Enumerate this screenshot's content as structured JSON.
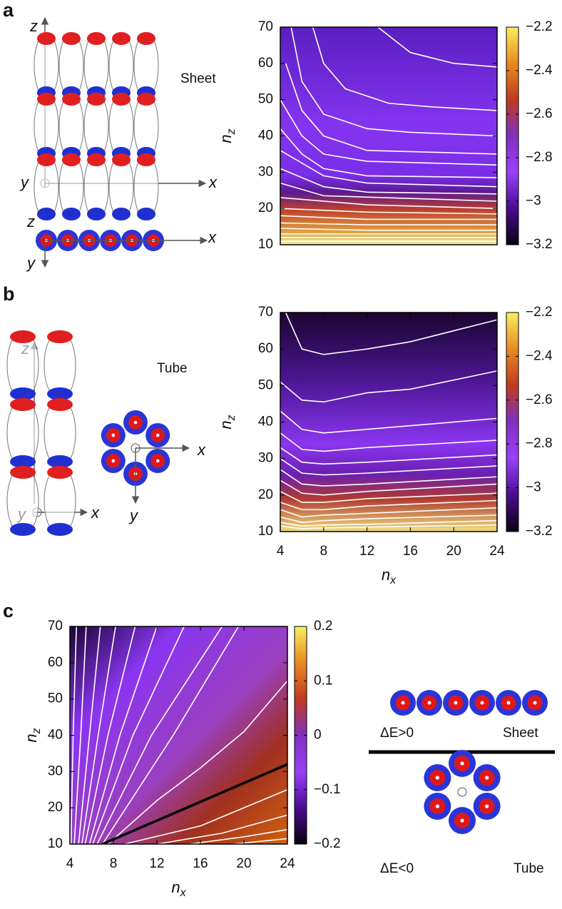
{
  "panel_labels": [
    "a",
    "b",
    "c"
  ],
  "illustrations": {
    "sheet": {
      "title": "Sheet",
      "side_axes": [
        "z",
        "y",
        "x"
      ],
      "top_axes": [
        "z",
        "x",
        "y"
      ]
    },
    "tube": {
      "title": "Tube",
      "side_axes": [
        "z",
        "y",
        "x"
      ],
      "top_axes": [
        "x",
        "y"
      ]
    },
    "comparison": {
      "sheet": {
        "condition": "ΔE>0",
        "label": "Sheet"
      },
      "tube": {
        "condition": "ΔE<0",
        "label": "Tube"
      }
    }
  },
  "chart_data": [
    {
      "type": "contour",
      "xlim": [
        4,
        24
      ],
      "ylim": [
        10,
        70
      ],
      "yticks": [
        10,
        20,
        30,
        40,
        50,
        60,
        70
      ],
      "ylabel": [
        "n",
        "z"
      ],
      "colorbar": {
        "lim": [
          -3.2,
          -2.2
        ],
        "ticks": [
          {
            "value": -3.2,
            "label": "−3.2"
          },
          {
            "value": -3,
            "label": "−3"
          },
          {
            "value": -2.8,
            "label": "−2.8"
          },
          {
            "value": -2.6,
            "label": "−2.6"
          },
          {
            "value": -2.4,
            "label": "−2.4"
          },
          {
            "value": -2.2,
            "label": "−2.2"
          }
        ],
        "colors": [
          "#0a0010",
          "#4a0c90",
          "#9a40f8",
          "#8030c0",
          "#c03a20",
          "#e88a20",
          "#f8f060"
        ]
      },
      "contour_color": "#ffffff",
      "contours": [
        {
          "x": [
            13,
            16,
            20,
            24
          ],
          "y": [
            70,
            63,
            60,
            59
          ]
        },
        {
          "x": [
            7,
            8,
            10,
            14,
            18,
            24
          ],
          "y": [
            70,
            60,
            53,
            49,
            48,
            47
          ]
        },
        {
          "x": [
            5,
            6,
            8,
            12,
            16,
            24
          ],
          "y": [
            70,
            55,
            46,
            42,
            41,
            40
          ]
        },
        {
          "x": [
            4.5,
            6,
            8,
            12,
            24
          ],
          "y": [
            60,
            47,
            40,
            36,
            35
          ]
        },
        {
          "x": [
            4,
            6,
            8,
            12,
            24
          ],
          "y": [
            50,
            40,
            35,
            33,
            32
          ]
        },
        {
          "x": [
            4,
            6,
            8,
            12,
            24
          ],
          "y": [
            42,
            35,
            31,
            29,
            28.5
          ]
        },
        {
          "x": [
            4,
            8,
            12,
            24
          ],
          "y": [
            36,
            29,
            27,
            26
          ]
        },
        {
          "x": [
            4,
            8,
            12,
            24
          ],
          "y": [
            31,
            26,
            24.5,
            24
          ]
        },
        {
          "x": [
            4,
            8,
            24
          ],
          "y": [
            27,
            23.5,
            22
          ]
        },
        {
          "x": [
            4,
            12,
            24
          ],
          "y": [
            23,
            21,
            20
          ]
        },
        {
          "x": [
            4,
            12,
            24
          ],
          "y": [
            20,
            19,
            18.5
          ]
        },
        {
          "x": [
            4,
            12,
            24
          ],
          "y": [
            18,
            17,
            17
          ]
        },
        {
          "x": [
            4,
            12,
            24
          ],
          "y": [
            16,
            15.5,
            15.5
          ]
        },
        {
          "x": [
            4,
            12,
            24
          ],
          "y": [
            14.5,
            14,
            14
          ]
        },
        {
          "x": [
            4,
            12,
            24
          ],
          "y": [
            13,
            13,
            13
          ]
        },
        {
          "x": [
            4,
            12,
            24
          ],
          "y": [
            12,
            12,
            12
          ]
        },
        {
          "x": [
            4,
            12,
            24
          ],
          "y": [
            11,
            11,
            11
          ]
        }
      ]
    },
    {
      "type": "contour",
      "xlim": [
        4,
        24
      ],
      "ylim": [
        10,
        70
      ],
      "xticks": [
        4,
        8,
        12,
        16,
        20,
        24
      ],
      "yticks": [
        10,
        20,
        30,
        40,
        50,
        60,
        70
      ],
      "xlabel": [
        "n",
        "x"
      ],
      "ylabel": [
        "n",
        "z"
      ],
      "colorbar": {
        "lim": [
          -3.2,
          -2.2
        ],
        "ticks": [
          {
            "value": -3.2,
            "label": "−3.2"
          },
          {
            "value": -3,
            "label": "−3"
          },
          {
            "value": -2.8,
            "label": "−2.8"
          },
          {
            "value": -2.6,
            "label": "−2.6"
          },
          {
            "value": -2.4,
            "label": "−2.4"
          },
          {
            "value": -2.2,
            "label": "−2.2"
          }
        ],
        "colors": [
          "#0a0010",
          "#4a0c90",
          "#9a40f8",
          "#8030c0",
          "#c03a20",
          "#e88a20",
          "#f8f060"
        ]
      },
      "contour_color": "#ffffff",
      "contours": [
        {
          "x": [
            4.5,
            6,
            8,
            12,
            16,
            24
          ],
          "y": [
            70,
            60,
            58.5,
            60,
            62,
            68
          ]
        },
        {
          "x": [
            4,
            6,
            8,
            12,
            16,
            24
          ],
          "y": [
            51,
            46,
            45.5,
            48,
            49,
            54
          ]
        },
        {
          "x": [
            4,
            6,
            8,
            12,
            24
          ],
          "y": [
            43,
            38,
            37,
            38,
            41
          ]
        },
        {
          "x": [
            4,
            6,
            8,
            12,
            24
          ],
          "y": [
            37,
            32.5,
            32,
            33,
            35
          ]
        },
        {
          "x": [
            4,
            6,
            8,
            12,
            24
          ],
          "y": [
            33,
            29,
            28.5,
            29,
            31
          ]
        },
        {
          "x": [
            4,
            6,
            8,
            12,
            24
          ],
          "y": [
            30,
            26,
            25.5,
            26,
            28
          ]
        },
        {
          "x": [
            4,
            6,
            8,
            12,
            24
          ],
          "y": [
            27,
            23,
            22.5,
            23,
            25
          ]
        },
        {
          "x": [
            4,
            6,
            8,
            12,
            24
          ],
          "y": [
            24,
            20.5,
            20,
            21,
            23
          ]
        },
        {
          "x": [
            4,
            6,
            8,
            12,
            24
          ],
          "y": [
            21,
            18,
            18,
            19,
            20.5
          ]
        },
        {
          "x": [
            4,
            6,
            8,
            12,
            24
          ],
          "y": [
            18,
            16,
            16,
            17,
            18.5
          ]
        },
        {
          "x": [
            4,
            6,
            8,
            12,
            24
          ],
          "y": [
            16,
            14,
            14.5,
            15,
            16.5
          ]
        },
        {
          "x": [
            4,
            6,
            8,
            12,
            24
          ],
          "y": [
            14,
            12.5,
            13,
            13.5,
            14.5
          ]
        },
        {
          "x": [
            4,
            6,
            8,
            12,
            24
          ],
          "y": [
            12.5,
            11.5,
            11.8,
            12,
            13
          ]
        },
        {
          "x": [
            4,
            6,
            8,
            12,
            24
          ],
          "y": [
            11.5,
            10.8,
            11,
            11.2,
            11.8
          ]
        }
      ]
    },
    {
      "type": "contour",
      "xlim": [
        4,
        24
      ],
      "ylim": [
        10,
        70
      ],
      "xticks": [
        4,
        8,
        12,
        16,
        20,
        24
      ],
      "yticks": [
        10,
        20,
        30,
        40,
        50,
        60,
        70
      ],
      "xlabel": [
        "n",
        "x"
      ],
      "ylabel": [
        "n",
        "z"
      ],
      "colorbar": {
        "lim": [
          -0.2,
          0.2
        ],
        "ticks": [
          {
            "value": -0.2,
            "label": "−0.2"
          },
          {
            "value": -0.1,
            "label": "−0.1"
          },
          0,
          0.1,
          0.2
        ],
        "colors": [
          "#0a0010",
          "#4a0c90",
          "#9a40f8",
          "#8030c0",
          "#c03a20",
          "#e88a20",
          "#f8f060"
        ]
      },
      "contour_color": "#ffffff",
      "contours": [
        {
          "x": [
            4.1,
            4.3,
            4.6
          ],
          "y": [
            10,
            40,
            70
          ]
        },
        {
          "x": [
            4.4,
            5,
            5.5
          ],
          "y": [
            10,
            40,
            70
          ]
        },
        {
          "x": [
            4.8,
            5.8,
            6.8
          ],
          "y": [
            10,
            40,
            70
          ]
        },
        {
          "x": [
            5.1,
            6.6,
            8.2
          ],
          "y": [
            10,
            40,
            70
          ]
        },
        {
          "x": [
            5.4,
            7.5,
            10
          ],
          "y": [
            10,
            40,
            70
          ]
        },
        {
          "x": [
            5.8,
            8.6,
            12
          ],
          "y": [
            10,
            40,
            70
          ]
        },
        {
          "x": [
            6.1,
            9.8,
            14.5
          ],
          "y": [
            10,
            40,
            70
          ]
        },
        {
          "x": [
            6.5,
            11.5,
            18
          ],
          "y": [
            10,
            40,
            70
          ]
        },
        {
          "x": [
            7,
            13.5,
            19.5
          ],
          "y": [
            10,
            40,
            70
          ]
        },
        {
          "x": [
            7.5,
            12,
            16,
            20,
            24
          ],
          "y": [
            10,
            22,
            31,
            41,
            55
          ]
        },
        {
          "x": [
            9,
            16,
            24
          ],
          "y": [
            10,
            15,
            25
          ]
        },
        {
          "x": [
            12,
            18,
            24
          ],
          "y": [
            10,
            13,
            18
          ]
        },
        {
          "x": [
            15,
            20,
            24
          ],
          "y": [
            10,
            12,
            14
          ]
        },
        {
          "x": [
            19,
            24
          ],
          "y": [
            10,
            11.5
          ]
        }
      ],
      "zero_line": {
        "x": [
          7,
          24
        ],
        "y": [
          10,
          32
        ],
        "color": "#000000"
      }
    }
  ]
}
